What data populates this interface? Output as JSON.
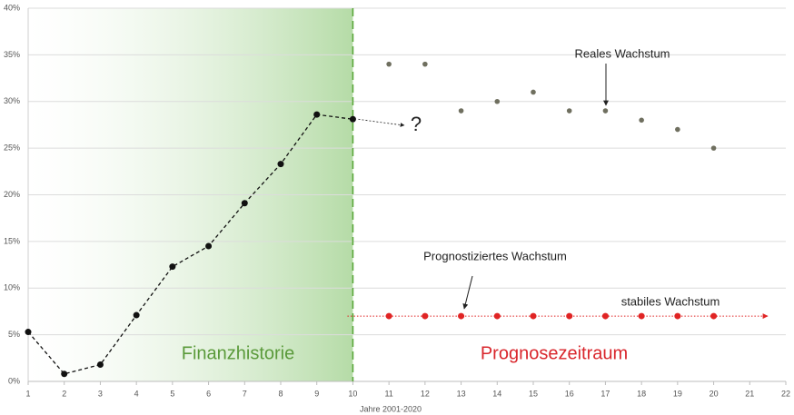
{
  "chart_data": {
    "type": "line",
    "xlabel": "Jahre 2001-2020",
    "xlim": [
      1,
      22
    ],
    "xticks": [
      1,
      2,
      3,
      4,
      5,
      6,
      7,
      8,
      9,
      10,
      11,
      12,
      13,
      14,
      15,
      16,
      17,
      18,
      19,
      20,
      21,
      22
    ],
    "ylim": [
      0,
      40
    ],
    "yticks": [
      {
        "value": 0,
        "label": "0%"
      },
      {
        "value": 5,
        "label": "5%"
      },
      {
        "value": 10,
        "label": "10%"
      },
      {
        "value": 15,
        "label": "15%"
      },
      {
        "value": 20,
        "label": "20%"
      },
      {
        "value": 25,
        "label": "25%"
      },
      {
        "value": 30,
        "label": "30%"
      },
      {
        "value": 35,
        "label": "35%"
      },
      {
        "value": 40,
        "label": "40%"
      }
    ],
    "grid": true,
    "series": [
      {
        "color": "#111111",
        "x": [
          1,
          2,
          3,
          4,
          5,
          6,
          7,
          8,
          9,
          10
        ],
        "values": [
          5.3,
          0.8,
          1.8,
          7.1,
          12.3,
          14.5,
          19.1,
          23.3,
          28.6,
          28.1
        ]
      },
      {
        "color": "#6f6f5f",
        "x": [
          11,
          12,
          13,
          14,
          15,
          16,
          17,
          18,
          19,
          20
        ],
        "values": [
          34,
          34,
          29,
          30,
          31,
          29,
          29,
          28,
          27,
          25
        ]
      },
      {
        "color": "#e02424",
        "x": [
          11,
          12,
          13,
          14,
          15,
          16,
          17,
          18,
          19,
          20
        ],
        "values": [
          7,
          7,
          7,
          7,
          7,
          7,
          7,
          7,
          7,
          7
        ]
      }
    ],
    "annotations": [
      "?",
      "Reales Wachstum",
      "Prognostiziertes Wachstum",
      "stabiles Wachstum",
      "Finanzhistorie",
      "Prognosezeitraum"
    ]
  }
}
